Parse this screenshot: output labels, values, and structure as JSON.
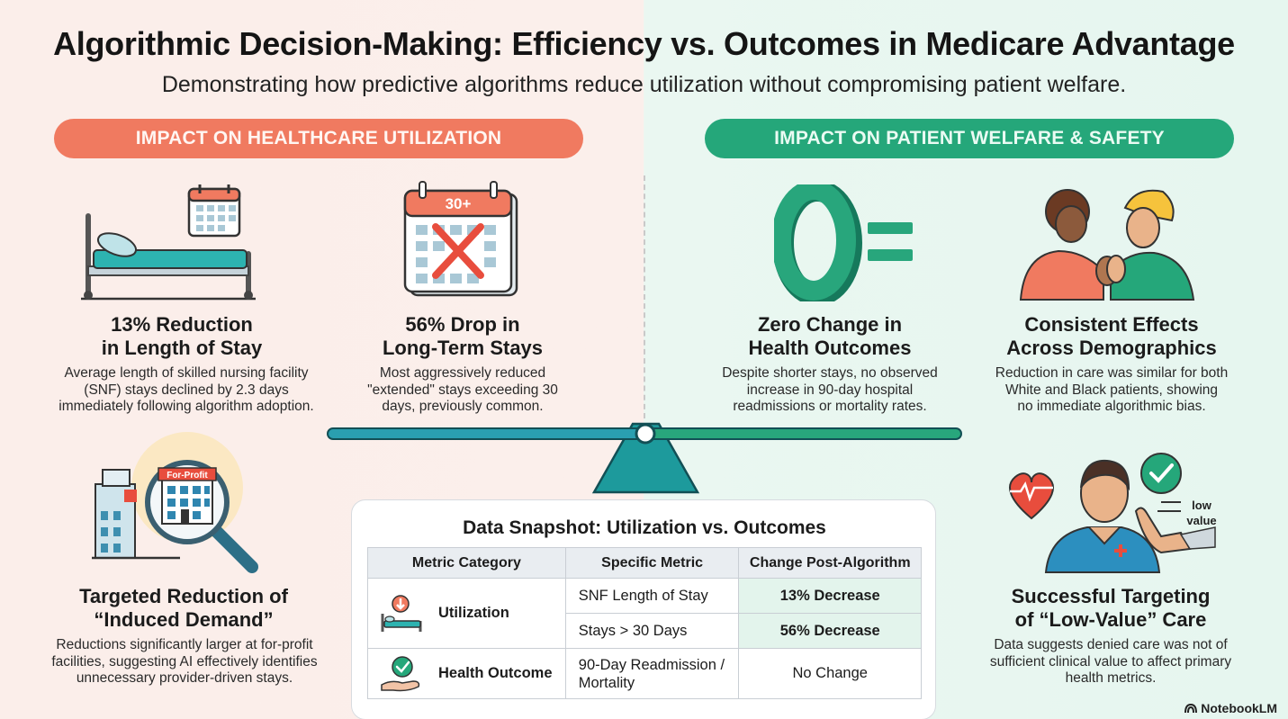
{
  "header": {
    "title": "Algorithmic Decision-Making: Efficiency vs. Outcomes in Medicare Advantage",
    "subtitle": "Demonstrating how predictive algorithms reduce utilization without compromising patient welfare."
  },
  "sections": {
    "left_label": "IMPACT ON HEALTHCARE UTILIZATION",
    "right_label": "IMPACT ON PATIENT WELFARE & SAFETY"
  },
  "blocks": {
    "length_of_stay": {
      "title_line1": "13% Reduction",
      "title_line2": "in Length of Stay",
      "desc_line1": "Average length of skilled nursing facility",
      "desc_line2": "(SNF) stays declined by 2.3 days",
      "desc_line3": "immediately following algorithm adoption."
    },
    "long_term": {
      "calendar_label": "30+",
      "title_line1": "56% Drop in",
      "title_line2": "Long-Term Stays",
      "desc_line1": "Most aggressively reduced",
      "desc_line2": "\"extended\" stays exceeding 30",
      "desc_line3": "days, previously common."
    },
    "zero_change": {
      "title_line1": "Zero Change in",
      "title_line2": "Health Outcomes",
      "desc_line1": "Despite shorter stays, no observed",
      "desc_line2": "increase in 90-day hospital",
      "desc_line3": "readmissions or mortality rates."
    },
    "demographics": {
      "title_line1": "Consistent Effects",
      "title_line2": "Across Demographics",
      "desc_line1": "Reduction in care was similar for both",
      "desc_line2": "White and Black patients, showing",
      "desc_line3": "no immediate algorithmic bias."
    },
    "induced_demand": {
      "sign_label": "For-Profit",
      "title_line1": "Targeted Reduction of",
      "title_line2": "“Induced Demand”",
      "desc_line1": "Reductions significantly larger at for-profit",
      "desc_line2": "facilities, suggesting AI effectively identifies",
      "desc_line3": "unnecessary provider-driven stays."
    },
    "low_value": {
      "hand_label_line1": "low",
      "hand_label_line2": "value",
      "title_line1": "Successful Targeting",
      "title_line2": "of “Low-Value” Care",
      "desc_line1": "Data suggests denied care was not of",
      "desc_line2": "sufficient clinical value to affect primary",
      "desc_line3": "health metrics."
    }
  },
  "snapshot": {
    "title": "Data Snapshot: Utilization vs. Outcomes",
    "headers": [
      "Metric Category",
      "Specific Metric",
      "Change Post-Algorithm"
    ],
    "rows": {
      "utilization": {
        "category": "Utilization",
        "metric1": "SNF Length of Stay",
        "change1": "13% Decrease",
        "metric2": "Stays > 30 Days",
        "change2": "56% Decrease"
      },
      "outcome": {
        "category": "Health Outcome",
        "metric_line1": "90-Day Readmission /",
        "metric_line2": "Mortality",
        "change": "No Change"
      }
    }
  },
  "brand": "NotebookLM",
  "colors": {
    "coral": "#f07a60",
    "green": "#25a77a",
    "teal": "#1d9a9c",
    "highlight": "#e3f4ec"
  },
  "icons": [
    "hospital-bed-icon",
    "calendar-icon",
    "calendar-cross-icon",
    "zero-equals-icon",
    "people-handshake-icon",
    "magnifier-building-icon",
    "doctor-check-icon",
    "balance-scale-icon"
  ]
}
